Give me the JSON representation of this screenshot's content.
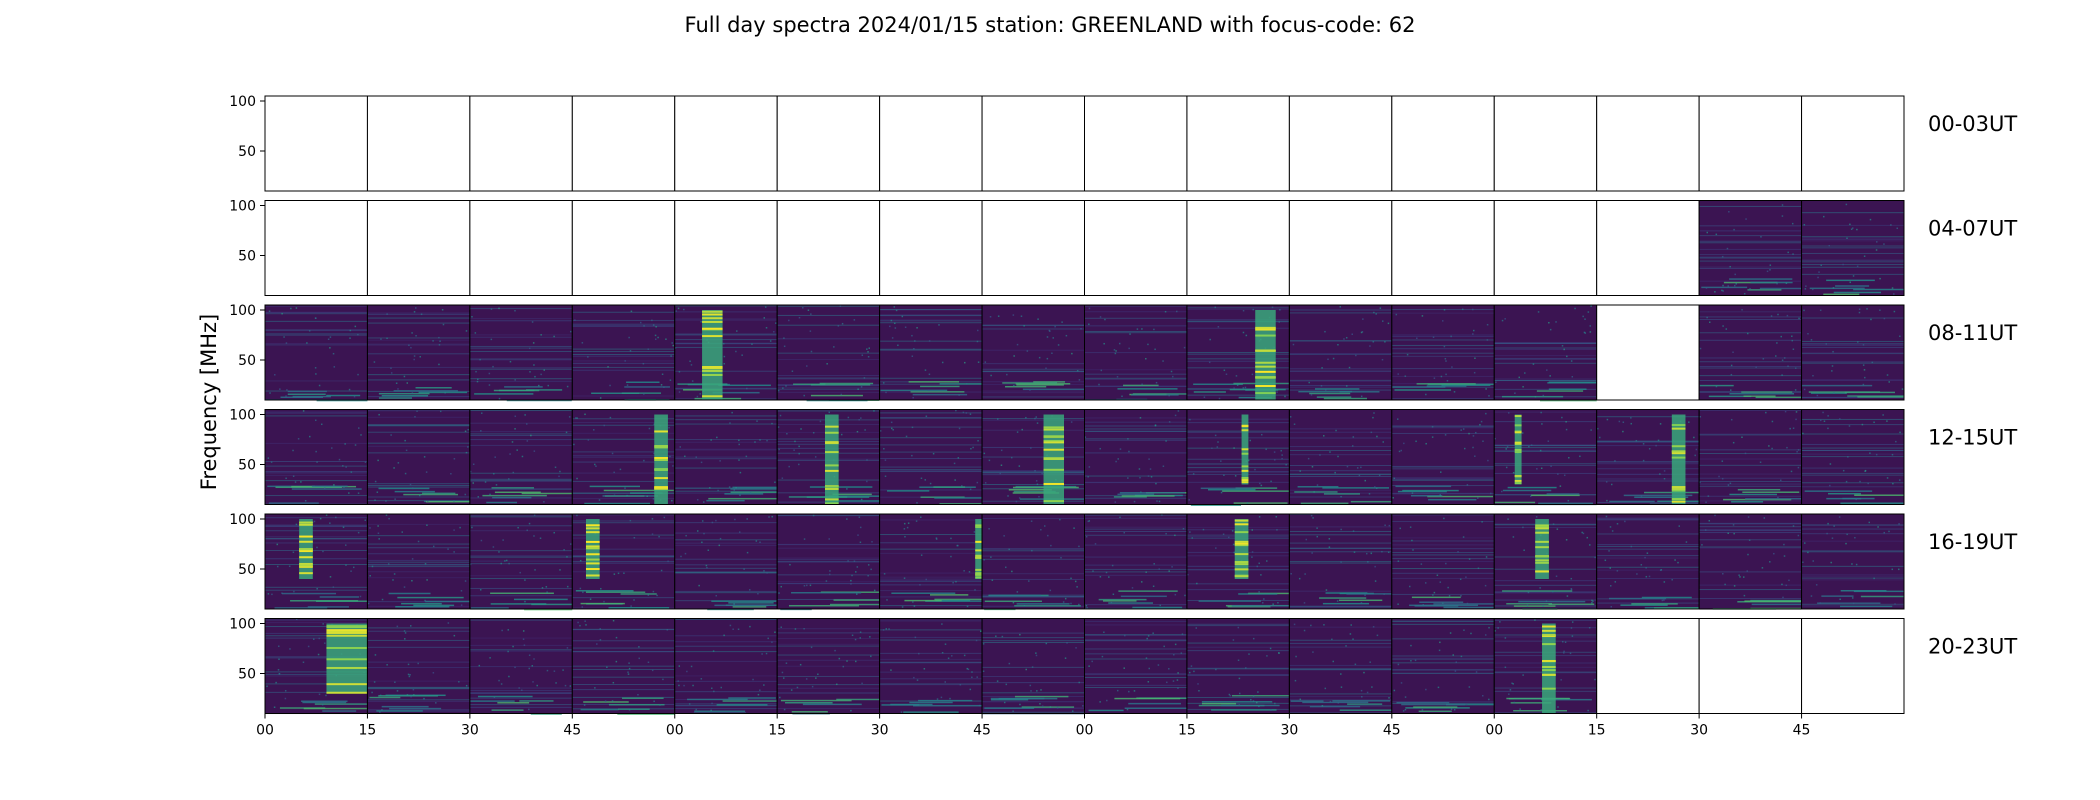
{
  "chart_data": {
    "type": "heatmap",
    "title": "Full day spectra 2024/01/15 station: GREENLAND with focus-code: 62",
    "ylabel": "Frequency [MHz]",
    "xlabel": "",
    "ylim": [
      10,
      105
    ],
    "y_ticks": [
      "100",
      "50"
    ],
    "y_tick_values": [
      100,
      50
    ],
    "x_ticks": [
      "00",
      "15",
      "30",
      "45",
      "00",
      "15",
      "30",
      "45",
      "00",
      "15",
      "30",
      "45",
      "00",
      "15",
      "30",
      "45"
    ],
    "x_tick_values": [
      0,
      15,
      30,
      45,
      60,
      75,
      90,
      105,
      120,
      135,
      150,
      165,
      180,
      195,
      210,
      225
    ],
    "panels_per_row": 16,
    "colormap": "viridis",
    "rows": [
      {
        "label": "00-03UT",
        "data_available": [
          0,
          0,
          0,
          0,
          0,
          0,
          0,
          0,
          0,
          0,
          0,
          0,
          0,
          0,
          0,
          0
        ],
        "bursts": []
      },
      {
        "label": "04-07UT",
        "data_available": [
          0,
          0,
          0,
          0,
          0,
          0,
          0,
          0,
          0,
          0,
          0,
          0,
          0,
          0,
          1,
          1
        ],
        "bursts": []
      },
      {
        "label": "08-11UT",
        "data_available": [
          1,
          1,
          1,
          1,
          1,
          1,
          1,
          1,
          1,
          1,
          1,
          1,
          1,
          0,
          1,
          1
        ],
        "bursts": [
          {
            "panel": 4,
            "minute_start": 4,
            "minute_end": 7,
            "freq_low": 10,
            "freq_high": 100
          },
          {
            "panel": 9,
            "minute_start": 10,
            "minute_end": 13,
            "freq_low": 10,
            "freq_high": 100
          }
        ]
      },
      {
        "label": "12-15UT",
        "data_available": [
          1,
          1,
          1,
          1,
          1,
          1,
          1,
          1,
          1,
          1,
          1,
          1,
          1,
          1,
          1,
          1
        ],
        "bursts": [
          {
            "panel": 3,
            "minute_start": 12,
            "minute_end": 14,
            "freq_low": 10,
            "freq_high": 100
          },
          {
            "panel": 5,
            "minute_start": 7,
            "minute_end": 9,
            "freq_low": 10,
            "freq_high": 100
          },
          {
            "panel": 7,
            "minute_start": 9,
            "minute_end": 12,
            "freq_low": 10,
            "freq_high": 100
          },
          {
            "panel": 9,
            "minute_start": 8,
            "minute_end": 9,
            "freq_low": 30,
            "freq_high": 100
          },
          {
            "panel": 12,
            "minute_start": 3,
            "minute_end": 4,
            "freq_low": 30,
            "freq_high": 100
          },
          {
            "panel": 13,
            "minute_start": 11,
            "minute_end": 13,
            "freq_low": 10,
            "freq_high": 100
          }
        ]
      },
      {
        "label": "16-19UT",
        "data_available": [
          1,
          1,
          1,
          1,
          1,
          1,
          1,
          1,
          1,
          1,
          1,
          1,
          1,
          1,
          1,
          1
        ],
        "bursts": [
          {
            "panel": 0,
            "minute_start": 5,
            "minute_end": 7,
            "freq_low": 40,
            "freq_high": 100
          },
          {
            "panel": 3,
            "minute_start": 2,
            "minute_end": 4,
            "freq_low": 40,
            "freq_high": 100
          },
          {
            "panel": 6,
            "minute_start": 14,
            "minute_end": 15,
            "freq_low": 40,
            "freq_high": 100
          },
          {
            "panel": 9,
            "minute_start": 7,
            "minute_end": 9,
            "freq_low": 40,
            "freq_high": 100
          },
          {
            "panel": 12,
            "minute_start": 6,
            "minute_end": 8,
            "freq_low": 40,
            "freq_high": 100
          }
        ]
      },
      {
        "label": "20-23UT",
        "data_available": [
          1,
          1,
          1,
          1,
          1,
          1,
          1,
          1,
          1,
          1,
          1,
          1,
          1,
          0,
          0,
          0
        ],
        "bursts": [
          {
            "panel": 0,
            "minute_start": 9,
            "minute_end": 15,
            "freq_low": 30,
            "freq_high": 100
          },
          {
            "panel": 12,
            "minute_start": 7,
            "minute_end": 9,
            "freq_low": 10,
            "freq_high": 100
          }
        ]
      }
    ]
  }
}
